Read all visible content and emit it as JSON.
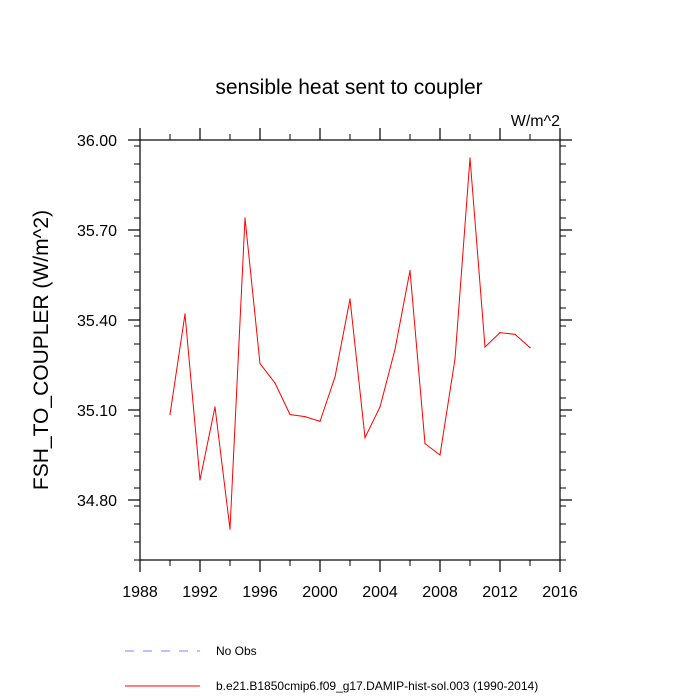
{
  "chart_data": {
    "type": "line",
    "title": "sensible heat sent to coupler",
    "units": "W/m^2",
    "ylabel": "FSH_TO_COUPLER  (W/m^2)",
    "xlabel": "",
    "xlim": [
      1988,
      2016
    ],
    "ylim": [
      34.6,
      36.0
    ],
    "x_ticks": [
      1988,
      1992,
      1996,
      2000,
      2004,
      2008,
      2012,
      2016
    ],
    "y_ticks": [
      34.8,
      35.1,
      35.4,
      35.7,
      36.0
    ],
    "y_tick_labels": [
      "34.80",
      "35.10",
      "35.40",
      "35.70",
      "36.00"
    ],
    "grid": false,
    "legend_placement": "bottom",
    "series": [
      {
        "name": "b.e21.B1850cmip6.f09_g17.DAMIP-hist-sol.003 (1990-2014)",
        "color": "#ff0000",
        "style": "solid",
        "x": [
          1990,
          1991,
          1992,
          1993,
          1994,
          1995,
          1996,
          1997,
          1998,
          1999,
          2000,
          2001,
          2002,
          2003,
          2004,
          2005,
          2006,
          2007,
          2008,
          2009,
          2010,
          2011,
          2012,
          2013,
          2014
        ],
        "y": [
          35.085,
          35.42,
          34.867,
          35.11,
          34.703,
          35.74,
          35.255,
          35.19,
          35.085,
          35.078,
          35.062,
          35.21,
          35.47,
          35.008,
          35.11,
          35.302,
          35.565,
          34.988,
          34.95,
          35.27,
          35.94,
          35.31,
          35.358,
          35.352,
          35.308
        ]
      }
    ],
    "legend": [
      {
        "name": "No Obs",
        "color": "#8080ff",
        "style": "dashed"
      },
      {
        "name": "b.e21.B1850cmip6.f09_g17.DAMIP-hist-sol.003 (1990-2014)",
        "color": "#ff0000",
        "style": "solid"
      }
    ]
  }
}
